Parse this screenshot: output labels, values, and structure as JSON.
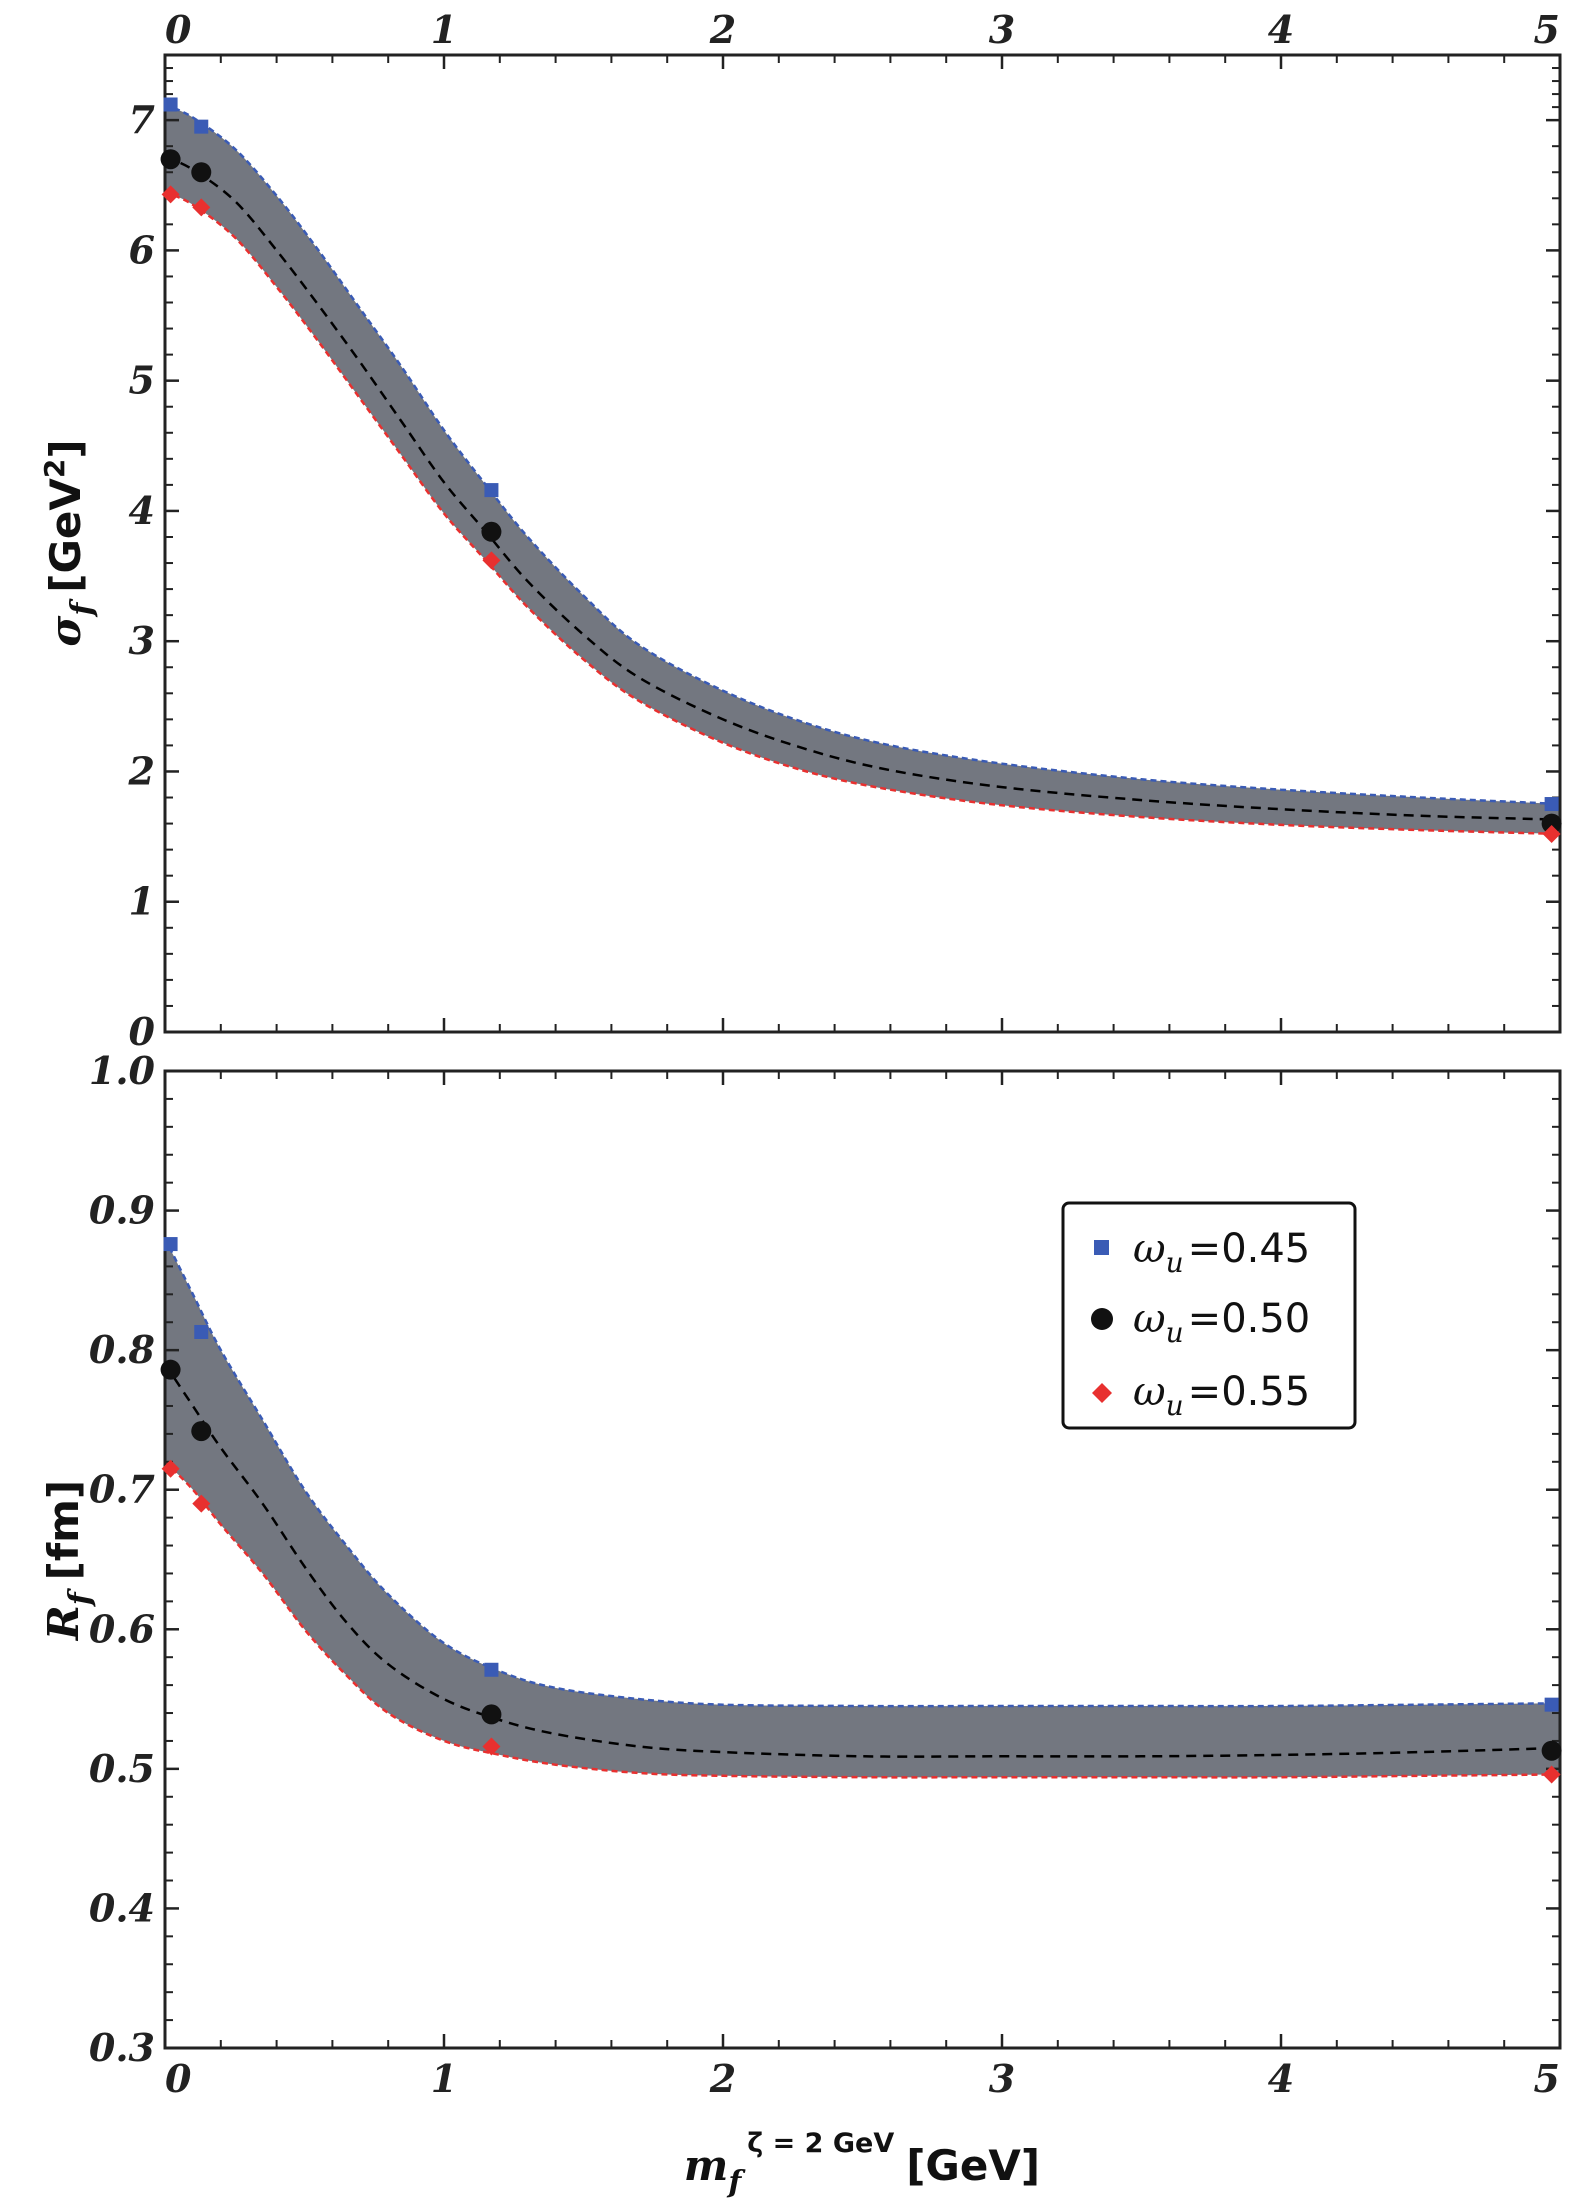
{
  "chart_data": [
    {
      "type": "line",
      "panel": "top",
      "ylabel": "σ_f [GeV^2]",
      "ylabel_main": "σ",
      "ylabel_sub": "f",
      "ylabel_unit": "[GeV",
      "ylabel_exp": "2",
      "ylabel_close": "]",
      "xlim": [
        0,
        5
      ],
      "ylim": [
        0,
        7.5
      ],
      "xticks": [
        0,
        1,
        2,
        3,
        4,
        5
      ],
      "xtick_labels": [
        "0",
        "1",
        "2",
        "3",
        "4",
        "5"
      ],
      "yticks": [
        0,
        1,
        2,
        3,
        4,
        5,
        6,
        7
      ],
      "ytick_labels": [
        "0",
        "1",
        "2",
        "3",
        "4",
        "5",
        "6",
        "7"
      ],
      "grid": false,
      "band": {
        "x": [
          0,
          0.1,
          0.25,
          0.4,
          0.55,
          0.7,
          0.85,
          1.0,
          1.15,
          1.3,
          1.5,
          1.7,
          2.0,
          2.3,
          2.6,
          3.0,
          3.5,
          4.0,
          4.5,
          5.0
        ],
        "upper": [
          7.12,
          7.02,
          6.78,
          6.42,
          6.0,
          5.55,
          5.1,
          4.62,
          4.2,
          3.8,
          3.35,
          2.97,
          2.62,
          2.37,
          2.2,
          2.06,
          1.94,
          1.86,
          1.8,
          1.75
        ],
        "middle": [
          6.72,
          6.62,
          6.38,
          6.0,
          5.58,
          5.14,
          4.68,
          4.22,
          3.84,
          3.46,
          3.05,
          2.72,
          2.4,
          2.17,
          2.01,
          1.88,
          1.78,
          1.71,
          1.66,
          1.63
        ],
        "lower": [
          6.45,
          6.35,
          6.1,
          5.72,
          5.3,
          4.86,
          4.42,
          3.98,
          3.62,
          3.26,
          2.86,
          2.54,
          2.22,
          2.0,
          1.86,
          1.74,
          1.65,
          1.59,
          1.55,
          1.52
        ]
      },
      "series": [
        {
          "name": "ω_u = 0.45",
          "marker": "square",
          "color": "#3a5bb5",
          "x": [
            0.02,
            0.13,
            1.17,
            4.97
          ],
          "y": [
            7.12,
            6.95,
            4.16,
            1.75
          ]
        },
        {
          "name": "ω_u = 0.50",
          "marker": "circle",
          "color": "#111111",
          "x": [
            0.02,
            0.13,
            1.17,
            4.97
          ],
          "y": [
            6.7,
            6.6,
            3.84,
            1.6
          ]
        },
        {
          "name": "ω_u = 0.55",
          "marker": "diamond",
          "color": "#e8302f",
          "x": [
            0.02,
            0.13,
            1.17,
            4.97
          ],
          "y": [
            6.43,
            6.33,
            3.62,
            1.52
          ]
        }
      ]
    },
    {
      "type": "line",
      "panel": "bottom",
      "ylabel": "R_f [fm]",
      "ylabel_main": "R",
      "ylabel_sub": "f",
      "ylabel_unit": "[fm]",
      "xlabel": "m_f^{ζ = 2 GeV} [GeV]",
      "xlabel_main": "m",
      "xlabel_sub": "f",
      "xlabel_sup": "ζ = 2 GeV",
      "xlabel_unit": "[GeV]",
      "xlim": [
        0,
        5
      ],
      "ylim": [
        0.3,
        1.0
      ],
      "xticks": [
        0,
        1,
        2,
        3,
        4,
        5
      ],
      "xtick_labels": [
        "0",
        "1",
        "2",
        "3",
        "4",
        "5"
      ],
      "yticks": [
        0.3,
        0.4,
        0.5,
        0.6,
        0.7,
        0.8,
        0.9,
        1.0
      ],
      "ytick_labels": [
        "0.3",
        "0.4",
        "0.5",
        "0.6",
        "0.7",
        "0.8",
        "0.9",
        "1.0"
      ],
      "grid": false,
      "legend_position": "upper-right",
      "band": {
        "x": [
          0,
          0.1,
          0.2,
          0.35,
          0.5,
          0.65,
          0.8,
          1.0,
          1.2,
          1.4,
          1.7,
          2.0,
          2.5,
          3.0,
          3.5,
          4.0,
          4.5,
          5.0
        ],
        "upper": [
          0.88,
          0.84,
          0.8,
          0.75,
          0.7,
          0.66,
          0.625,
          0.59,
          0.57,
          0.558,
          0.55,
          0.546,
          0.545,
          0.545,
          0.545,
          0.545,
          0.546,
          0.547
        ],
        "middle": [
          0.79,
          0.76,
          0.73,
          0.69,
          0.645,
          0.605,
          0.575,
          0.55,
          0.535,
          0.525,
          0.516,
          0.512,
          0.509,
          0.509,
          0.509,
          0.51,
          0.512,
          0.515
        ],
        "lower": [
          0.72,
          0.7,
          0.675,
          0.64,
          0.6,
          0.567,
          0.54,
          0.52,
          0.51,
          0.503,
          0.497,
          0.495,
          0.494,
          0.494,
          0.494,
          0.494,
          0.495,
          0.496
        ]
      },
      "series": [
        {
          "name": "ω_u = 0.45",
          "marker": "square",
          "color": "#3a5bb5",
          "x": [
            0.02,
            0.13,
            1.17,
            4.97
          ],
          "y": [
            0.876,
            0.813,
            0.571,
            0.546
          ]
        },
        {
          "name": "ω_u = 0.50",
          "marker": "circle",
          "color": "#111111",
          "x": [
            0.02,
            0.13,
            1.17,
            4.97
          ],
          "y": [
            0.786,
            0.742,
            0.539,
            0.513
          ]
        },
        {
          "name": "ω_u = 0.55",
          "marker": "diamond",
          "color": "#e8302f",
          "x": [
            0.02,
            0.13,
            1.17,
            4.97
          ],
          "y": [
            0.715,
            0.69,
            0.516,
            0.496
          ]
        }
      ]
    }
  ],
  "legend": {
    "items": [
      {
        "symbol": "ω",
        "sub": "u",
        "value": "=0.45",
        "marker": "square",
        "color": "#3a5bb5"
      },
      {
        "symbol": "ω",
        "sub": "u",
        "value": "=0.50",
        "marker": "circle",
        "color": "#111111"
      },
      {
        "symbol": "ω",
        "sub": "u",
        "value": "=0.55",
        "marker": "diamond",
        "color": "#e8302f"
      }
    ]
  },
  "colors": {
    "band_fill": "#737780",
    "upper_edge": "#3a5bb5",
    "lower_edge": "#e8302f",
    "central_line": "#000000",
    "frame": "#222222"
  }
}
